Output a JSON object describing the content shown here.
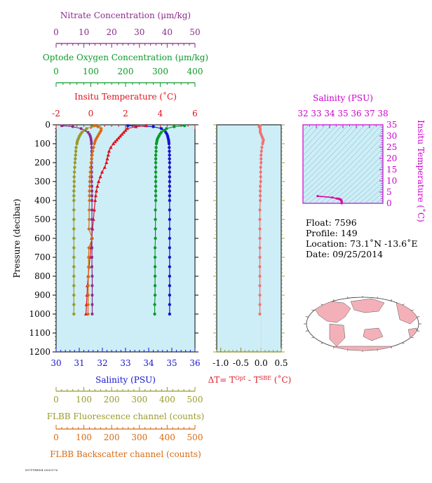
{
  "colors": {
    "nitrate": "#8b2a8b",
    "oxygen": "#0a9a2a",
    "temperature": "#e0101a",
    "salinity": "#1414d0",
    "fluorescence": "#9a9a2a",
    "backscatter": "#d86a10",
    "delta_t": "#f07070",
    "panel_bg": "#cdeef7",
    "ts_axis": "#cc00cc",
    "land": "#f4b0b8"
  },
  "chart_data": [
    {
      "type": "line",
      "panel": "main-profile",
      "ylabel": "Pressure (decibar)",
      "y_ticks": [
        0,
        100,
        200,
        300,
        400,
        500,
        600,
        700,
        800,
        900,
        1000,
        1100,
        1200
      ],
      "ylim": [
        1200,
        0
      ],
      "axes": [
        {
          "key": "nitrate",
          "label": "Nitrate Concentration (μm/kg)",
          "ticks": [
            "0",
            "10",
            "20",
            "30",
            "40",
            "50"
          ],
          "range": [
            0,
            50
          ]
        },
        {
          "key": "oxygen",
          "label": "Optode Oxygen Concentration (μm/kg)",
          "ticks": [
            "0",
            "100",
            "200",
            "300",
            "400"
          ],
          "range": [
            0,
            400
          ]
        },
        {
          "key": "temperature",
          "label": "Insitu Temperature (˚C)",
          "ticks": [
            "-2",
            "0",
            "2",
            "4",
            "6"
          ],
          "range": [
            -2,
            6
          ]
        },
        {
          "key": "salinity",
          "label": "Salinity (PSU)",
          "ticks": [
            "30",
            "31",
            "32",
            "33",
            "34",
            "35",
            "36"
          ],
          "range": [
            30,
            36
          ]
        },
        {
          "key": "fluorescence",
          "label": "FLBB Fluorescence channel (counts)",
          "ticks": [
            "0",
            "100",
            "200",
            "300",
            "400",
            "500"
          ],
          "range": [
            0,
            500
          ]
        },
        {
          "key": "backscatter",
          "label": "FLBB Backscatter channel (counts)",
          "ticks": [
            "0",
            "100",
            "200",
            "300",
            "400",
            "500"
          ],
          "range": [
            0,
            500
          ]
        }
      ],
      "series": [
        {
          "key": "salinity",
          "pressure": [
            5,
            10,
            20,
            30,
            40,
            50,
            60,
            70,
            80,
            90,
            100,
            120,
            140,
            160,
            180,
            200,
            225,
            250,
            275,
            300,
            325,
            350,
            375,
            400,
            450,
            500,
            550,
            600,
            650,
            700,
            750,
            800,
            850,
            900,
            950,
            1000
          ],
          "values": [
            33.1,
            34.2,
            34.55,
            34.68,
            34.74,
            34.79,
            34.82,
            34.84,
            34.86,
            34.87,
            34.88,
            34.89,
            34.895,
            34.9,
            34.9,
            34.905,
            34.905,
            34.905,
            34.905,
            34.905,
            34.905,
            34.905,
            34.905,
            34.905,
            34.905,
            34.905,
            34.905,
            34.905,
            34.905,
            34.905,
            34.905,
            34.905,
            34.905,
            34.905,
            34.905,
            34.905
          ]
        },
        {
          "key": "oxygen",
          "pressure": [
            5,
            10,
            20,
            30,
            40,
            50,
            60,
            70,
            80,
            90,
            100,
            120,
            140,
            160,
            180,
            200,
            225,
            250,
            275,
            300,
            325,
            350,
            375,
            400,
            450,
            500,
            550,
            600,
            650,
            700,
            750,
            800,
            850,
            900,
            950,
            1000
          ],
          "values": [
            370,
            340,
            318,
            310,
            303,
            299,
            296,
            293,
            291,
            290,
            289,
            288,
            288,
            287,
            287,
            287,
            287,
            287,
            287,
            287,
            287,
            287,
            287,
            287,
            286,
            286,
            286,
            286,
            285,
            285,
            285,
            285,
            285,
            285,
            284,
            284
          ]
        },
        {
          "key": "temperature",
          "pressure": [
            5,
            10,
            20,
            30,
            40,
            50,
            60,
            70,
            80,
            90,
            100,
            120,
            140,
            160,
            180,
            200,
            225,
            250,
            275,
            300,
            325,
            350,
            375,
            400,
            450,
            500,
            550,
            600,
            650,
            700,
            750,
            800,
            850,
            900,
            950,
            1000
          ],
          "values": [
            3.2,
            2.6,
            2.1,
            2.0,
            1.9,
            1.8,
            1.7,
            1.6,
            1.5,
            1.4,
            1.3,
            1.15,
            1.05,
            1.0,
            0.95,
            0.9,
            0.8,
            0.65,
            0.55,
            0.45,
            0.38,
            0.32,
            0.28,
            0.25,
            0.2,
            0.15,
            0.1,
            0.05,
            0.0,
            -0.05,
            -0.1,
            -0.15,
            -0.2,
            -0.22,
            -0.25,
            -0.28
          ]
        },
        {
          "key": "nitrate",
          "pressure": [
            5,
            10,
            20,
            30,
            40,
            50,
            60,
            70,
            80,
            90,
            100,
            120,
            140,
            160,
            180,
            200,
            225,
            250,
            275,
            300,
            325,
            350,
            375,
            400,
            450,
            500,
            550,
            600,
            650,
            700,
            750,
            800,
            850,
            900,
            950,
            1000
          ],
          "values": [
            2,
            6,
            9,
            10.5,
            11.5,
            12,
            12.3,
            12.5,
            12.6,
            12.7,
            12.7,
            12.8,
            12.8,
            12.8,
            12.8,
            12.8,
            12.8,
            12.8,
            12.8,
            12.8,
            12.9,
            12.9,
            12.9,
            12.9,
            12.9,
            12.9,
            12.9,
            12.9,
            12.9,
            12.9,
            12.9,
            13,
            13,
            13,
            13,
            13
          ]
        },
        {
          "key": "fluorescence",
          "pressure": [
            5,
            10,
            20,
            30,
            40,
            50,
            60,
            70,
            80,
            90,
            100,
            120,
            140,
            160,
            180,
            200,
            225,
            250,
            275,
            300,
            325,
            350,
            375,
            400,
            450,
            500,
            550,
            600,
            650,
            700,
            750,
            800,
            850,
            900,
            950,
            1000
          ],
          "values": [
            155,
            128,
            110,
            100,
            93,
            88,
            84,
            81,
            78,
            76,
            75,
            72,
            71,
            70,
            69,
            68,
            67,
            66,
            65,
            65,
            65,
            64,
            64,
            64,
            64,
            64,
            64,
            64,
            64,
            64,
            64,
            64,
            64,
            64,
            64,
            64
          ]
        },
        {
          "key": "backscatter",
          "pressure": [
            5,
            10,
            20,
            30,
            40,
            50,
            60,
            70,
            80,
            90,
            100,
            120,
            140,
            160,
            180,
            200,
            225,
            250,
            275,
            300,
            325,
            350,
            375,
            400,
            450,
            500,
            550,
            600,
            650,
            700,
            750,
            800,
            850,
            900,
            950,
            1000
          ],
          "values": [
            138,
            150,
            162,
            162,
            158,
            154,
            150,
            146,
            142,
            140,
            138,
            135,
            132,
            130,
            128,
            126,
            124,
            123,
            122,
            121,
            121,
            120,
            120,
            120,
            119,
            119,
            118,
            130,
            118,
            117,
            117,
            116,
            116,
            116,
            115,
            115
          ]
        }
      ]
    },
    {
      "type": "line",
      "panel": "delta-t",
      "xlabel": "ΔT= T^Opt - T^SBE (˚C)",
      "x_ticks": [
        "-1.0",
        "-0.5",
        "0.0",
        "0.5"
      ],
      "xlim": [
        -1.1,
        0.5
      ],
      "ylim": [
        1200,
        0
      ],
      "pressure": [
        5,
        10,
        20,
        30,
        40,
        50,
        60,
        70,
        80,
        90,
        100,
        120,
        140,
        160,
        180,
        200,
        225,
        250,
        275,
        300,
        325,
        350,
        375,
        400,
        450,
        500,
        550,
        600,
        650,
        700,
        750,
        800,
        850,
        900,
        950,
        1000
      ],
      "values": [
        -0.02,
        -0.05,
        -0.02,
        -0.02,
        -0.02,
        0,
        0.02,
        0.04,
        0.06,
        0.05,
        0.04,
        0.02,
        0.01,
        0,
        0,
        0,
        -0.01,
        -0.01,
        -0.01,
        -0.01,
        -0.02,
        -0.02,
        -0.02,
        -0.02,
        -0.03,
        -0.03,
        -0.03,
        -0.03,
        -0.03,
        -0.03,
        -0.03,
        -0.03,
        -0.03,
        -0.03,
        -0.03,
        -0.03
      ]
    },
    {
      "type": "scatter",
      "panel": "ts-diagram",
      "title": "Salinity (PSU)",
      "ylabel": "Insitu Temperature (˚C)",
      "x_ticks": [
        "32",
        "33",
        "34",
        "35",
        "36",
        "37",
        "38"
      ],
      "xlim": [
        32,
        38
      ],
      "y_ticks": [
        "0",
        "5",
        "10",
        "15",
        "20",
        "25",
        "30",
        "35"
      ],
      "ylim": [
        0,
        35
      ],
      "salinity": [
        33.1,
        34.2,
        34.55,
        34.68,
        34.74,
        34.79,
        34.82,
        34.84,
        34.86,
        34.88,
        34.89,
        34.9,
        34.9,
        34.905,
        34.905
      ],
      "temperature": [
        3.2,
        2.6,
        2.1,
        2.0,
        1.9,
        1.8,
        1.7,
        1.6,
        1.5,
        1.3,
        1.15,
        1.0,
        0.9,
        0.5,
        0.0
      ]
    }
  ],
  "info": {
    "float": "Float:  7596",
    "profile": "Profile:  149",
    "location": "Location:  73.1˚N  -13.6˚E",
    "date": "Date:  09/25/2014"
  },
  "stamp": "NUTTRED4 0000176"
}
